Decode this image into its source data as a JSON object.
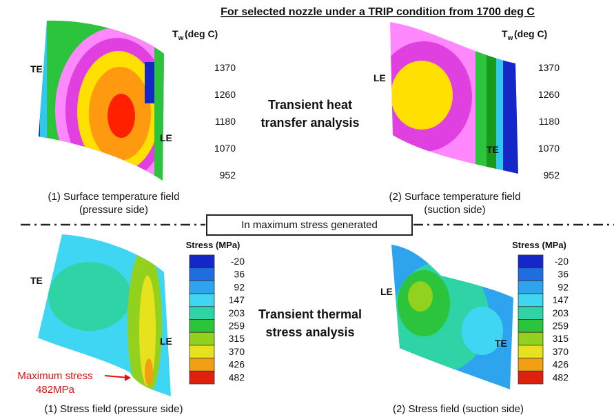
{
  "header": {
    "title": "For selected nozzle under a TRIP condition from 1700 deg C"
  },
  "temperature_legends": [
    {
      "symbol": "T",
      "subscript": "w",
      "unit": "(deg C)",
      "values": [
        1370,
        1260,
        1180,
        1070,
        952
      ]
    },
    {
      "symbol": "T",
      "subscript": "w",
      "unit": "(deg C)",
      "values": [
        1370,
        1260,
        1180,
        1070,
        952
      ]
    }
  ],
  "top_panels": [
    {
      "labels": [
        "TE",
        "LE"
      ],
      "caption": [
        "(1) Surface temperature field",
        "(pressure side)"
      ]
    },
    {
      "labels": [
        "LE",
        "TE"
      ],
      "caption": [
        "(2) Surface temperature field",
        "(suction side)"
      ]
    }
  ],
  "top_analysis": [
    "Transient heat",
    "transfer analysis"
  ],
  "divider_label": "In maximum stress generated",
  "stress_legends": [
    {
      "title": "Stress (MPa)",
      "values": [
        -20,
        36,
        92,
        147,
        203,
        259,
        315,
        370,
        426,
        482
      ],
      "colors": [
        "#1428c8",
        "#1e6ee0",
        "#2ea4ee",
        "#3ed6f2",
        "#2ed4a6",
        "#2cc43c",
        "#92d21e",
        "#e6e21e",
        "#f0a012",
        "#e0200e"
      ]
    },
    {
      "title": "Stress (MPa)",
      "values": [
        -20,
        36,
        92,
        147,
        203,
        259,
        315,
        370,
        426,
        482
      ],
      "colors": [
        "#1428c8",
        "#1e6ee0",
        "#2ea4ee",
        "#3ed6f2",
        "#2ed4a6",
        "#2cc43c",
        "#92d21e",
        "#e6e21e",
        "#f0a012",
        "#e0200e"
      ]
    }
  ],
  "bottom_panels": [
    {
      "labels": [
        "TE",
        "LE"
      ],
      "caption": "(1) Stress field (pressure side)"
    },
    {
      "labels": [
        "LE",
        "TE"
      ],
      "caption": "(2) Stress field (suction side)"
    }
  ],
  "bottom_analysis": [
    "Transient thermal",
    "stress analysis"
  ],
  "max_stress": [
    "Maximum stress",
    "482MPa"
  ]
}
